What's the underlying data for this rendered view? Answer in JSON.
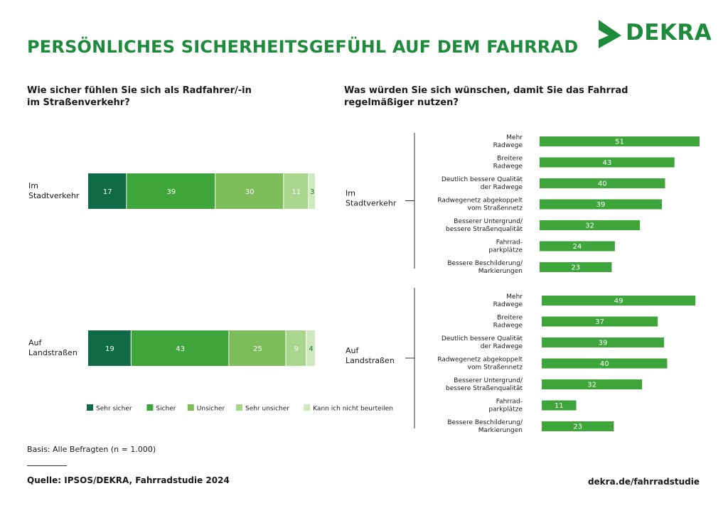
{
  "title": "PERSÖNLICHES SICHERHEITSGEFÜHL AUF DEM FAHRRAD",
  "logo": {
    "text": "DEKRA",
    "color": "#1e8a3c"
  },
  "left_subtitle": "Wie sicher fühlen Sie sich als Radfahrer/-in\nim Straßenverkehr?",
  "right_subtitle": "Was würden Sie sich wünschen, damit Sie das Fahrrad\nregelmäßiger nutzen?",
  "footnote": "Basis: Alle Befragten (n = 1.000)",
  "source": "Quelle: IPSOS/DEKRA, Fahrradstudie 2024",
  "website": "dekra.de/fahrradstudie",
  "chart_data": [
    {
      "type": "bar",
      "stacked": true,
      "orientation": "horizontal",
      "categories": [
        "Im\nStadtverkehr",
        "Auf\nLandstraßen"
      ],
      "series": [
        {
          "name": "Sehr sicher",
          "color": "#0f6b47",
          "values": [
            17,
            19
          ]
        },
        {
          "name": "Sicher",
          "color": "#3ea53a",
          "values": [
            39,
            43
          ]
        },
        {
          "name": "Unsicher",
          "color": "#7cbc59",
          "values": [
            30,
            25
          ]
        },
        {
          "name": "Sehr unsicher",
          "color": "#a9d58c",
          "values": [
            11,
            9
          ]
        },
        {
          "name": "Kann ich nicht beurteilen",
          "color": "#cde9bd",
          "values": [
            3,
            4
          ]
        }
      ],
      "legend": "bottom"
    },
    {
      "type": "bar",
      "orientation": "horizontal",
      "color": "#3ea53a",
      "groups": [
        {
          "label": "Im\nStadtverkehr",
          "categories": [
            "Mehr\nRadwege",
            "Breitere\nRadwege",
            "Deutlich bessere Qualität\nder Radwege",
            "Radwegenetz abgekoppelt\nvom Straßennetz",
            "Besserer Untergrund/\nbessere Straßenqualität",
            "Fahrrad-\nparkplätze",
            "Bessere Beschilderung/\nMarkierungen"
          ],
          "values": [
            51,
            43,
            40,
            39,
            32,
            24,
            23
          ]
        },
        {
          "label": "Auf\nLandstraßen",
          "categories": [
            "Mehr\nRadwege",
            "Breitere\nRadwege",
            "Deutlich bessere Qualität\nder Radwege",
            "Radwegenetz abgekoppelt\nvom Straßennetz",
            "Besserer Untergrund/\nbessere Straßenqualität",
            "Fahrrad-\nparkplätze",
            "Bessere Beschilderung/\nMarkierungen"
          ],
          "values": [
            49,
            37,
            39,
            40,
            32,
            11,
            23
          ]
        }
      ]
    }
  ]
}
